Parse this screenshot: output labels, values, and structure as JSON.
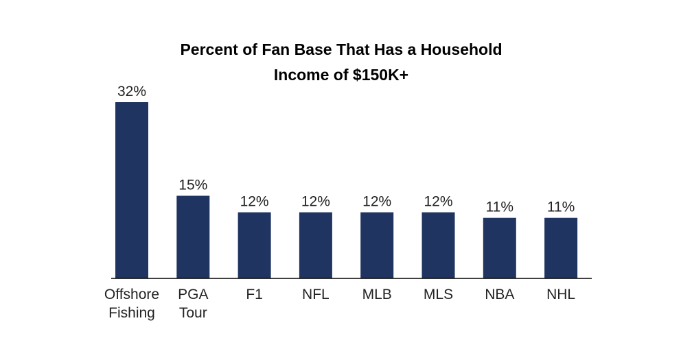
{
  "chart_data": {
    "type": "bar",
    "title": [
      "Percent of Fan Base That Has a Household",
      "Income of $150K+"
    ],
    "categories": [
      [
        "Offshore",
        "Fishing"
      ],
      [
        "PGA",
        "Tour"
      ],
      [
        "F1"
      ],
      [
        "NFL"
      ],
      [
        "MLB"
      ],
      [
        "MLS"
      ],
      [
        "NBA"
      ],
      [
        "NHL"
      ]
    ],
    "values": [
      32,
      15,
      12,
      12,
      12,
      12,
      11,
      11
    ],
    "value_labels": [
      "32%",
      "15%",
      "12%",
      "12%",
      "12%",
      "12%",
      "11%",
      "11%"
    ],
    "ylim": [
      0,
      32
    ],
    "grid": false,
    "legend": "none",
    "bar_color": "#1f3461"
  }
}
